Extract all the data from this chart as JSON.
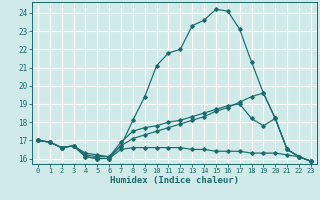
{
  "xlabel": "Humidex (Indice chaleur)",
  "bg_color": "#d0eaea",
  "grid_color": "#b8d8d8",
  "line_color": "#1a6b6b",
  "xlim": [
    -0.5,
    23.5
  ],
  "ylim": [
    15.7,
    24.6
  ],
  "xticks": [
    0,
    1,
    2,
    3,
    4,
    5,
    6,
    7,
    8,
    9,
    10,
    11,
    12,
    13,
    14,
    15,
    16,
    17,
    18,
    19,
    20,
    21,
    22,
    23
  ],
  "yticks": [
    16,
    17,
    18,
    19,
    20,
    21,
    22,
    23,
    24
  ],
  "curves": [
    [
      17.0,
      16.9,
      16.6,
      16.7,
      16.1,
      16.0,
      16.0,
      16.7,
      18.1,
      19.4,
      21.1,
      21.8,
      22.0,
      23.3,
      23.6,
      24.2,
      24.1,
      23.1,
      21.3,
      19.6,
      18.2,
      16.5,
      16.1,
      15.85
    ],
    [
      17.0,
      16.9,
      16.6,
      16.7,
      16.2,
      16.1,
      16.1,
      16.7,
      17.1,
      17.3,
      17.5,
      17.7,
      17.9,
      18.1,
      18.3,
      18.6,
      18.8,
      19.1,
      19.4,
      19.6,
      18.2,
      16.5,
      16.1,
      15.85
    ],
    [
      17.0,
      16.9,
      16.6,
      16.7,
      16.3,
      16.2,
      16.1,
      16.9,
      17.5,
      17.7,
      17.8,
      18.0,
      18.1,
      18.3,
      18.5,
      18.7,
      18.9,
      19.0,
      18.2,
      17.8,
      18.2,
      16.5,
      16.1,
      15.85
    ],
    [
      17.0,
      16.9,
      16.6,
      16.7,
      16.1,
      16.0,
      16.0,
      16.5,
      16.6,
      16.6,
      16.6,
      16.6,
      16.6,
      16.5,
      16.5,
      16.4,
      16.4,
      16.4,
      16.3,
      16.3,
      16.3,
      16.2,
      16.1,
      15.85
    ]
  ]
}
